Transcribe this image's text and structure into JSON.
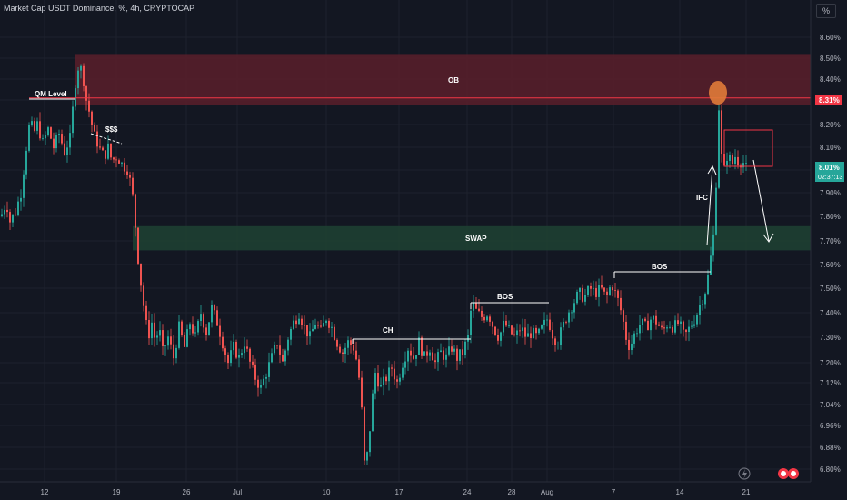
{
  "header": {
    "title": "Market Cap USDT Dominance, %, 4h, CRYPTOCAP",
    "scale_button": "%"
  },
  "chart_data": {
    "type": "candlestick",
    "title": "Market Cap USDT Dominance, %, 4h, CRYPTOCAP",
    "ylim": [
      6.78,
      8.66
    ],
    "y_ticks": [
      "8.60%",
      "8.50%",
      "8.40%",
      "8.30%",
      "8.20%",
      "8.10%",
      "8.00%",
      "7.90%",
      "7.80%",
      "7.70%",
      "7.60%",
      "7.50%",
      "7.40%",
      "7.30%",
      "7.20%",
      "7.12%",
      "7.04%",
      "6.96%",
      "6.88%",
      "6.80%"
    ],
    "x_ticks": [
      "12",
      "19",
      "26",
      "Jul",
      "10",
      "17",
      "24",
      "28",
      "Aug",
      "7",
      "14",
      "21"
    ],
    "y_axis_position": "right",
    "grid": true,
    "current_price_label": "8.01%",
    "countdown_label": "02:37:13",
    "level_price_label": "8.31%",
    "colors": {
      "up": "#26a69a",
      "down": "#ef5350",
      "background": "#131722",
      "ob_zone": "#5a1f2a",
      "swap_zone": "#1e3f32",
      "level_line": "#f23645",
      "circle": "#e07b39"
    },
    "zones": [
      {
        "label": "OB",
        "y_top": 8.52,
        "y_bottom": 8.28
      },
      {
        "label": "SWAP",
        "y_top": 7.76,
        "y_bottom": 7.66
      }
    ],
    "level_line": {
      "label": "QM Level",
      "y": 8.31
    },
    "annotations": [
      "QM Level",
      "$$$",
      "OB",
      "SWAP",
      "CH",
      "BOS",
      "BOS",
      "IFC"
    ],
    "path": [
      [
        0,
        7.8
      ],
      [
        6,
        7.86
      ],
      [
        10,
        7.78
      ],
      [
        16,
        7.82
      ],
      [
        22,
        7.9
      ],
      [
        28,
        8.1
      ],
      [
        32,
        8.22
      ],
      [
        36,
        8.16
      ],
      [
        40,
        8.2
      ],
      [
        46,
        8.12
      ],
      [
        52,
        8.18
      ],
      [
        58,
        8.1
      ],
      [
        64,
        8.16
      ],
      [
        70,
        8.08
      ],
      [
        76,
        8.14
      ],
      [
        82,
        8.38
      ],
      [
        86,
        8.48
      ],
      [
        90,
        8.42
      ],
      [
        94,
        8.3
      ],
      [
        98,
        8.24
      ],
      [
        102,
        8.16
      ],
      [
        106,
        8.12
      ],
      [
        110,
        8.08
      ],
      [
        114,
        8.06
      ],
      [
        118,
        8.1
      ],
      [
        122,
        8.04
      ],
      [
        128,
        8.06
      ],
      [
        134,
        8.02
      ],
      [
        140,
        8.0
      ],
      [
        146,
        7.86
      ],
      [
        150,
        7.66
      ],
      [
        154,
        7.52
      ],
      [
        158,
        7.4
      ],
      [
        162,
        7.3
      ],
      [
        166,
        7.36
      ],
      [
        170,
        7.28
      ],
      [
        174,
        7.34
      ],
      [
        178,
        7.24
      ],
      [
        184,
        7.3
      ],
      [
        190,
        7.22
      ],
      [
        196,
        7.34
      ],
      [
        202,
        7.26
      ],
      [
        208,
        7.36
      ],
      [
        214,
        7.3
      ],
      [
        220,
        7.4
      ],
      [
        226,
        7.32
      ],
      [
        232,
        7.42
      ],
      [
        238,
        7.36
      ],
      [
        244,
        7.28
      ],
      [
        250,
        7.2
      ],
      [
        256,
        7.26
      ],
      [
        262,
        7.22
      ],
      [
        268,
        7.28
      ],
      [
        274,
        7.2
      ],
      [
        280,
        7.14
      ],
      [
        286,
        7.1
      ],
      [
        292,
        7.16
      ],
      [
        298,
        7.22
      ],
      [
        304,
        7.28
      ],
      [
        310,
        7.2
      ],
      [
        316,
        7.3
      ],
      [
        322,
        7.36
      ],
      [
        328,
        7.4
      ],
      [
        334,
        7.34
      ],
      [
        340,
        7.3
      ],
      [
        346,
        7.36
      ],
      [
        352,
        7.32
      ],
      [
        358,
        7.38
      ],
      [
        364,
        7.34
      ],
      [
        370,
        7.28
      ],
      [
        376,
        7.24
      ],
      [
        382,
        7.28
      ],
      [
        388,
        7.26
      ],
      [
        392,
        7.2
      ],
      [
        396,
        7.08
      ],
      [
        400,
        6.82
      ],
      [
        404,
        6.86
      ],
      [
        408,
        7.04
      ],
      [
        412,
        7.16
      ],
      [
        418,
        7.1
      ],
      [
        424,
        7.14
      ],
      [
        430,
        7.18
      ],
      [
        436,
        7.12
      ],
      [
        442,
        7.2
      ],
      [
        448,
        7.26
      ],
      [
        454,
        7.22
      ],
      [
        460,
        7.28
      ],
      [
        466,
        7.22
      ],
      [
        472,
        7.26
      ],
      [
        478,
        7.2
      ],
      [
        484,
        7.24
      ],
      [
        490,
        7.22
      ],
      [
        496,
        7.26
      ],
      [
        502,
        7.22
      ],
      [
        508,
        7.24
      ],
      [
        514,
        7.3
      ],
      [
        518,
        7.44
      ],
      [
        524,
        7.4
      ],
      [
        530,
        7.38
      ],
      [
        536,
        7.4
      ],
      [
        542,
        7.34
      ],
      [
        548,
        7.3
      ],
      [
        554,
        7.36
      ],
      [
        560,
        7.32
      ],
      [
        566,
        7.3
      ],
      [
        572,
        7.34
      ],
      [
        578,
        7.3
      ],
      [
        584,
        7.32
      ],
      [
        590,
        7.3
      ],
      [
        596,
        7.34
      ],
      [
        602,
        7.38
      ],
      [
        606,
        7.32
      ],
      [
        612,
        7.28
      ],
      [
        618,
        7.34
      ],
      [
        624,
        7.4
      ],
      [
        630,
        7.44
      ],
      [
        636,
        7.48
      ],
      [
        642,
        7.46
      ],
      [
        648,
        7.5
      ],
      [
        654,
        7.48
      ],
      [
        660,
        7.5
      ],
      [
        666,
        7.46
      ],
      [
        672,
        7.52
      ],
      [
        676,
        7.48
      ],
      [
        680,
        7.44
      ],
      [
        684,
        7.38
      ],
      [
        688,
        7.3
      ],
      [
        692,
        7.26
      ],
      [
        698,
        7.32
      ],
      [
        704,
        7.36
      ],
      [
        710,
        7.34
      ],
      [
        716,
        7.38
      ],
      [
        722,
        7.36
      ],
      [
        728,
        7.32
      ],
      [
        734,
        7.36
      ],
      [
        740,
        7.34
      ],
      [
        746,
        7.36
      ],
      [
        752,
        7.3
      ],
      [
        758,
        7.34
      ],
      [
        764,
        7.38
      ],
      [
        770,
        7.44
      ],
      [
        776,
        7.5
      ],
      [
        780,
        7.6
      ],
      [
        784,
        7.72
      ],
      [
        788,
        8.02
      ],
      [
        790,
        8.27
      ],
      [
        792,
        8.08
      ],
      [
        796,
        8.0
      ],
      [
        800,
        8.08
      ],
      [
        804,
        8.02
      ],
      [
        808,
        8.06
      ],
      [
        812,
        8.03
      ],
      [
        816,
        8.04
      ],
      [
        820,
        8.01
      ]
    ]
  },
  "overlays": {
    "ob_label": "OB",
    "swap_label": "SWAP",
    "qm_label": "QM Level",
    "liquidity_label": "$$$",
    "ch_label": "CH",
    "bos1_label": "BOS",
    "bos2_label": "BOS",
    "ifc_label": "IFC"
  }
}
